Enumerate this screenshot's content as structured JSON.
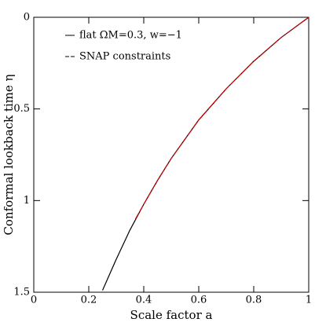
{
  "chart_data": {
    "type": "line",
    "xlabel": "Scale factor a",
    "ylabel": "Conformal lookback time η",
    "xlim": [
      0,
      1
    ],
    "ylim": [
      0,
      1.5
    ],
    "y_inverted": true,
    "xticks": [
      0,
      0.2,
      0.4,
      0.6,
      0.8,
      1
    ],
    "yticks": [
      0,
      0.5,
      1,
      1.5
    ],
    "legend": "upper left",
    "series": [
      {
        "name": "flat ΩM=0.3, w=−1",
        "color": "#000000",
        "dashed": false,
        "x": [
          0.25,
          0.3,
          0.35,
          0.4,
          0.45,
          0.5,
          0.6,
          0.7,
          0.8,
          0.9,
          1
        ],
        "values": [
          1.49,
          1.32,
          1.16,
          1.02,
          0.89,
          0.77,
          0.56,
          0.39,
          0.24,
          0.11,
          0
        ]
      },
      {
        "name": "SNAP constraints",
        "color": "#cc0000",
        "dashed": true,
        "x": [
          0.37,
          0.4,
          0.45,
          0.5,
          0.6,
          0.7,
          0.8,
          0.9,
          1
        ],
        "values": [
          1.1,
          1.02,
          0.89,
          0.77,
          0.56,
          0.39,
          0.24,
          0.11,
          0
        ]
      }
    ]
  }
}
